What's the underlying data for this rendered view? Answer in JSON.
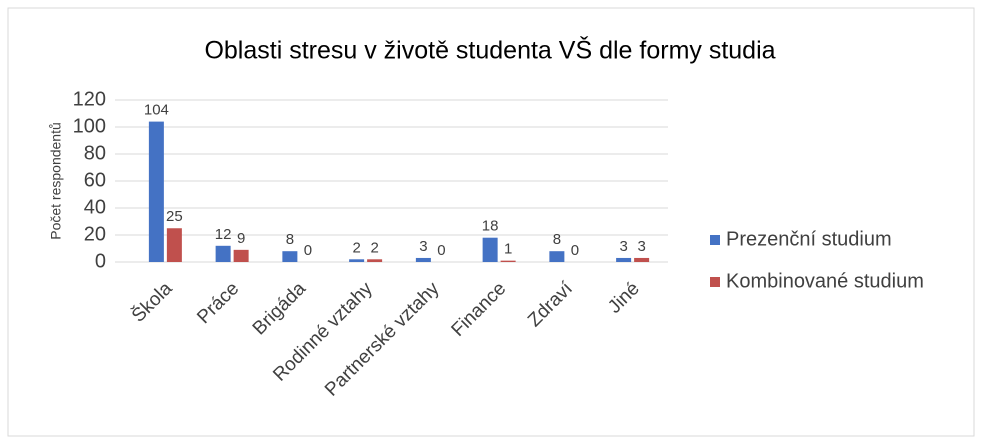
{
  "chart_data": {
    "type": "bar",
    "title": "Oblasti stresu v životě studenta VŠ dle formy studia",
    "y_label": "Počet respondentů",
    "categories": [
      "Škola",
      "Práce",
      "Brigáda",
      "Rodinné vztahy",
      "Partnerské vztahy",
      "Finance",
      "Zdraví",
      "Jiné"
    ],
    "series": [
      {
        "name": "Prezenční studium",
        "color": "#4472c4",
        "values": [
          104,
          12,
          8,
          2,
          3,
          18,
          8,
          3
        ]
      },
      {
        "name": "Kombinované studium",
        "color": "#c0504d",
        "values": [
          25,
          9,
          0,
          2,
          0,
          1,
          0,
          3
        ]
      }
    ],
    "ylim": [
      0,
      120
    ],
    "yticks": [
      0,
      20,
      40,
      60,
      80,
      100,
      120
    ],
    "grid": true,
    "legend": "right"
  }
}
